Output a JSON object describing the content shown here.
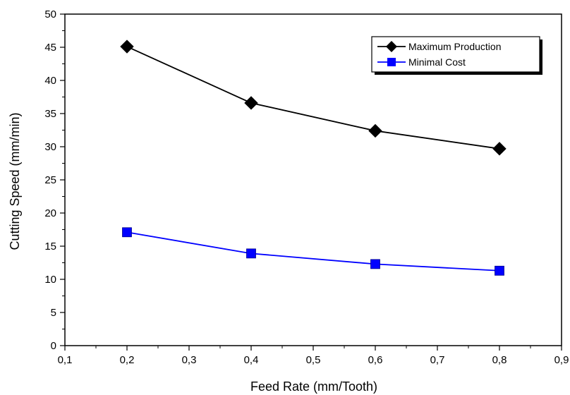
{
  "chart_data": {
    "type": "line",
    "title": "",
    "xlabel": "Feed Rate (mm/Tooth)",
    "ylabel": "Cutting Speed (mm/min)",
    "x": [
      0.2,
      0.4,
      0.6,
      0.8
    ],
    "xlim": [
      0.1,
      0.9
    ],
    "ylim": [
      0,
      50
    ],
    "x_ticks": [
      0.1,
      0.2,
      0.3,
      0.4,
      0.5,
      0.6,
      0.7,
      0.8,
      0.9
    ],
    "x_tick_labels": [
      "0,1",
      "0,2",
      "0,3",
      "0,4",
      "0,5",
      "0,6",
      "0,7",
      "0,8",
      "0,9"
    ],
    "y_ticks": [
      0,
      5,
      10,
      15,
      20,
      25,
      30,
      35,
      40,
      45,
      50
    ],
    "y_tick_labels": [
      "0",
      "5",
      "10",
      "15",
      "20",
      "25",
      "30",
      "35",
      "40",
      "45",
      "50"
    ],
    "grid": false,
    "legend_position": "top-right",
    "series": [
      {
        "name": "Maximum Production",
        "values": [
          45.1,
          36.6,
          32.4,
          29.7
        ],
        "color": "#000000",
        "marker": "diamond"
      },
      {
        "name": "Minimal Cost",
        "values": [
          17.1,
          13.9,
          12.3,
          11.3
        ],
        "color": "#0000ff",
        "marker": "square"
      }
    ]
  }
}
